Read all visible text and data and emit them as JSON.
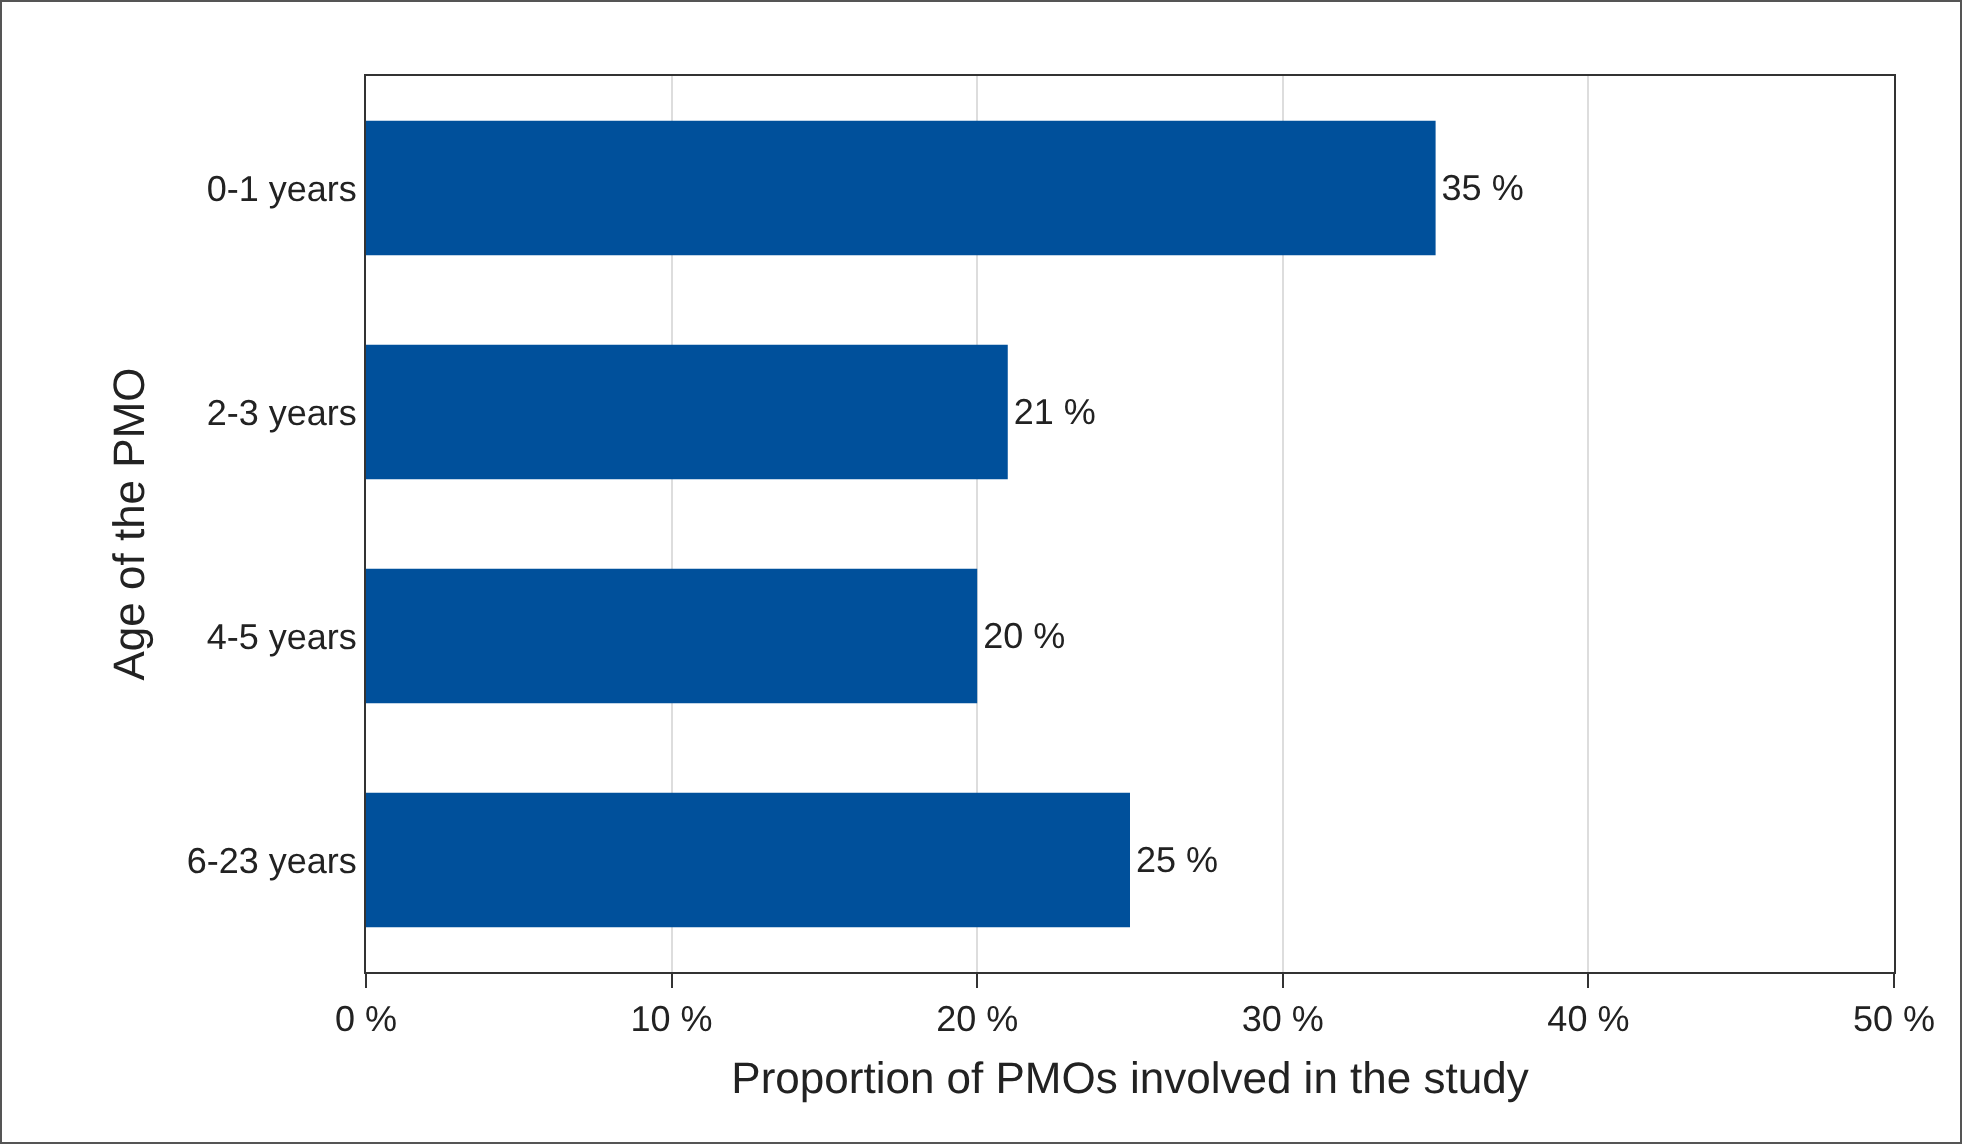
{
  "chart_data": {
    "type": "bar",
    "orientation": "horizontal",
    "categories": [
      "0-1 years",
      "2-3 years",
      "4-5 years",
      "6-23 years"
    ],
    "values": [
      35,
      21,
      20,
      25
    ],
    "value_labels": [
      "35 %",
      "21 %",
      "20 %",
      "25 %"
    ],
    "color": "#00509b",
    "xlabel": "Proportion of PMOs involved in the study",
    "ylabel": "Age of the PMO",
    "xlim": [
      0,
      50
    ],
    "xticks": [
      {
        "value": 0,
        "label": "0 %"
      },
      {
        "value": 10,
        "label": "10 %"
      },
      {
        "value": 20,
        "label": "20 %"
      },
      {
        "value": 30,
        "label": "30 %"
      },
      {
        "value": 40,
        "label": "40 %"
      },
      {
        "value": 50,
        "label": "50 %"
      }
    ],
    "grid": "x",
    "legend": false
  }
}
